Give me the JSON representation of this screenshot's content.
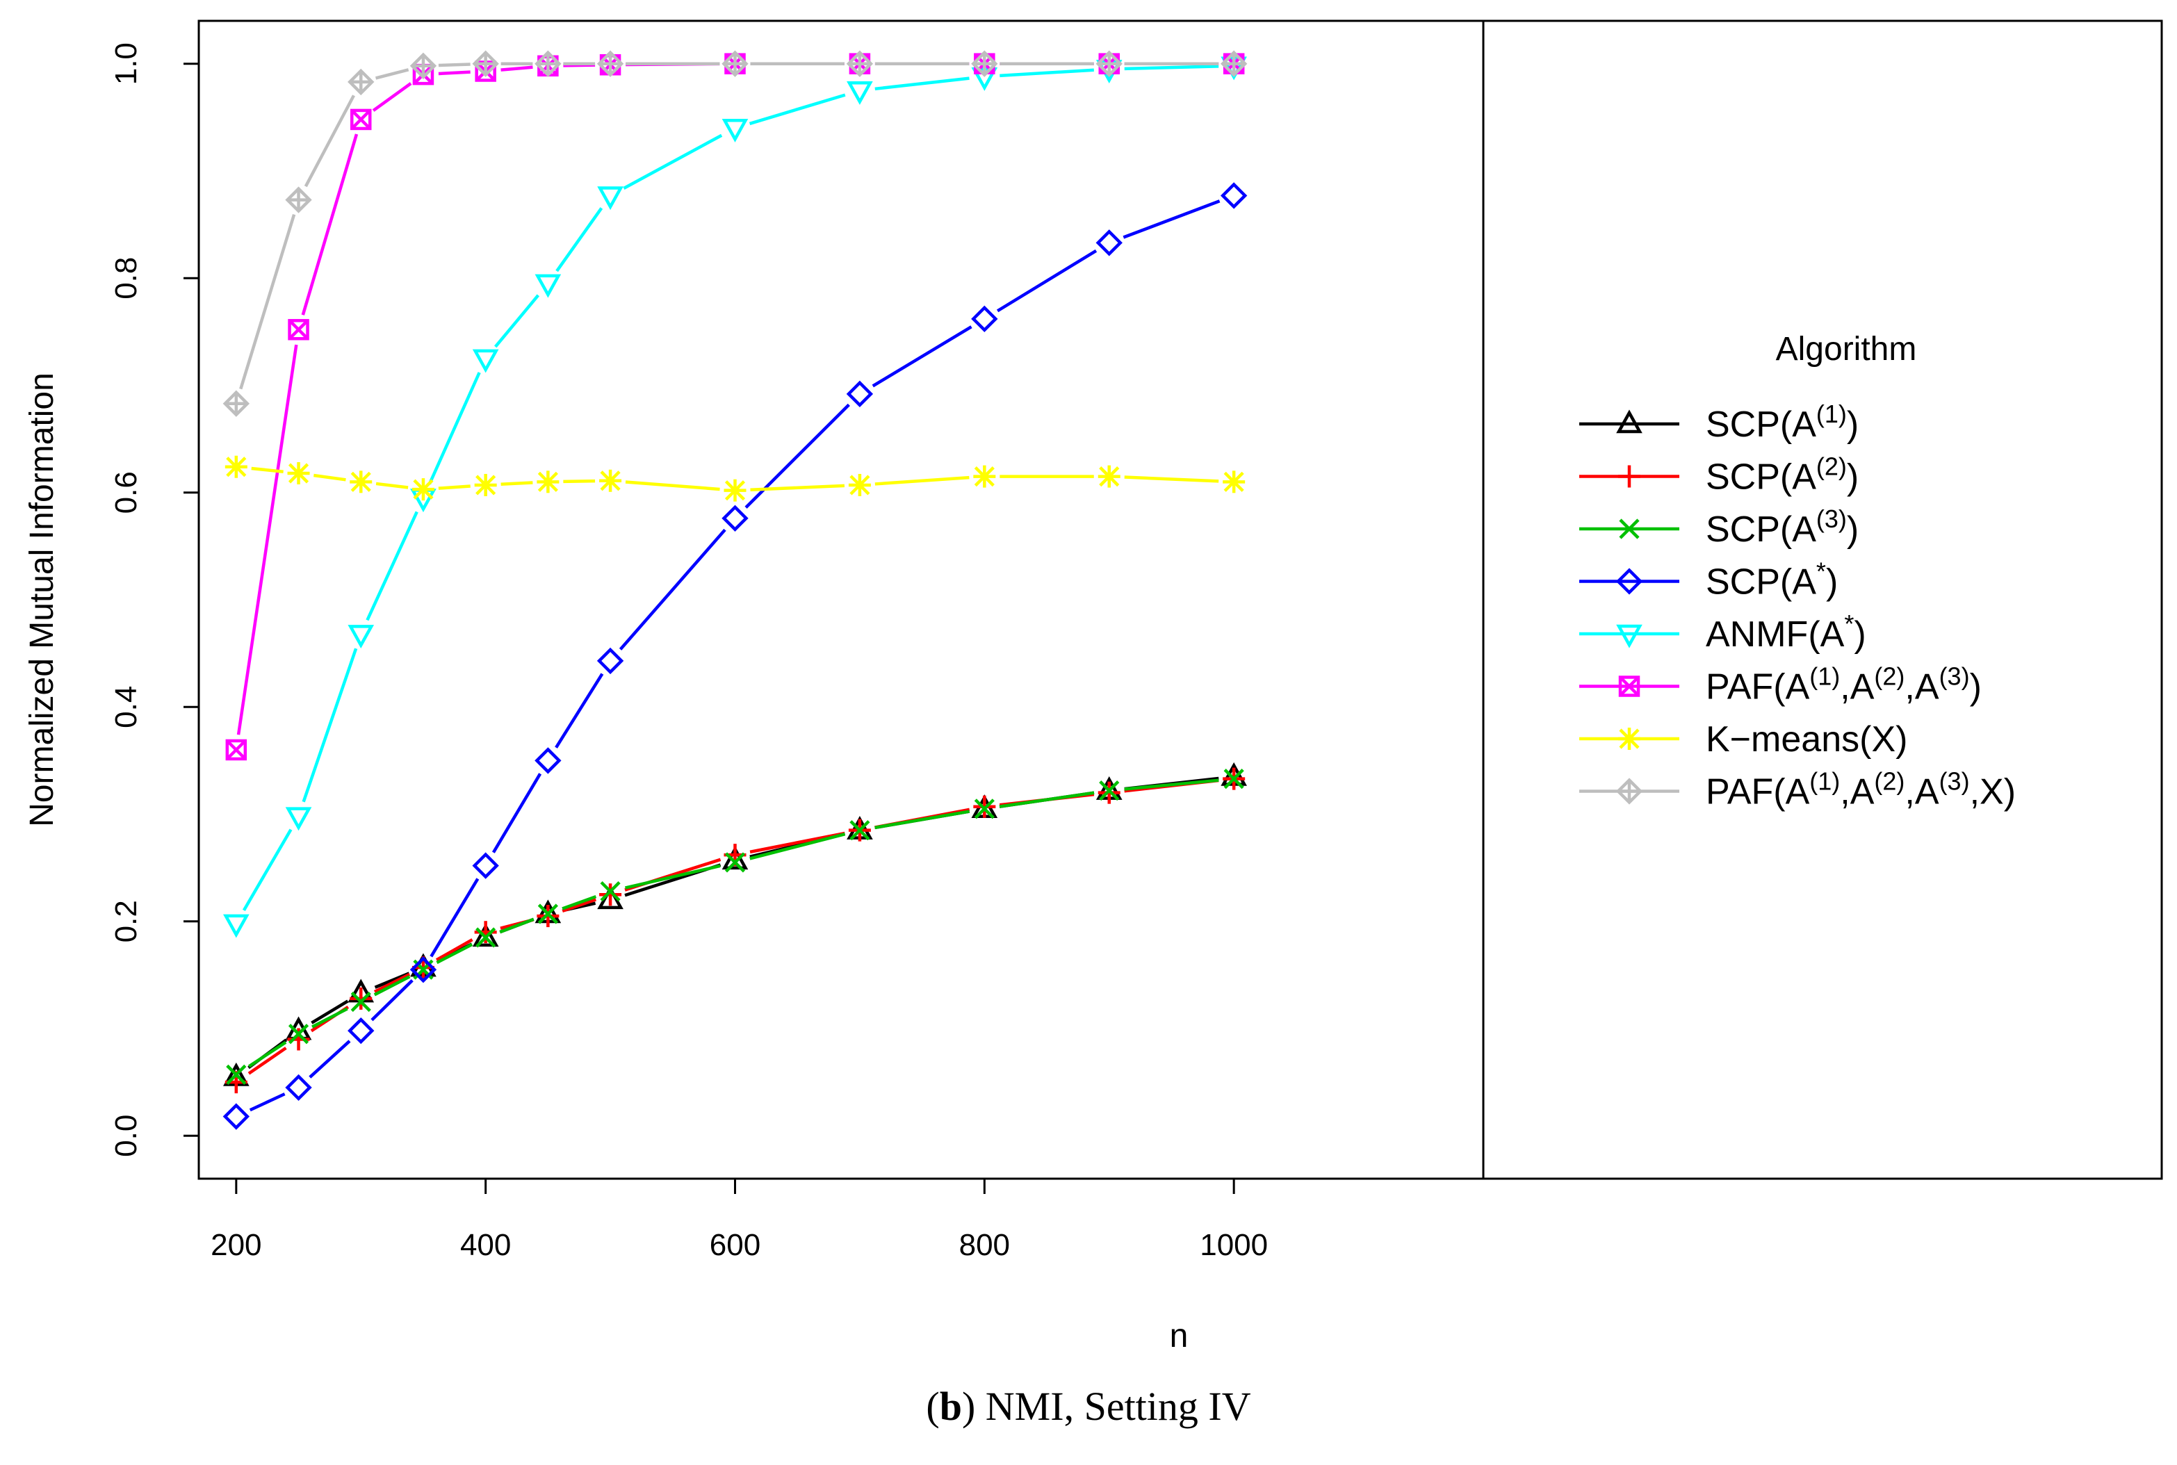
{
  "chart_data": {
    "type": "line",
    "title": "",
    "xlabel": "n",
    "ylabel": "Normalized Mutual Information",
    "xlim": [
      170,
      1200
    ],
    "ylim": [
      -0.04,
      1.04
    ],
    "xticks": [
      200,
      400,
      600,
      800,
      1000
    ],
    "xtick_labels": [
      "200",
      "400",
      "600",
      "800",
      "1000"
    ],
    "yticks": [
      0.0,
      0.2,
      0.4,
      0.6,
      0.8,
      1.0
    ],
    "ytick_labels": [
      "0.0",
      "0.2",
      "0.4",
      "0.6",
      "0.8",
      "1.0"
    ],
    "grid": false,
    "x": [
      200,
      250,
      300,
      350,
      400,
      450,
      500,
      600,
      700,
      800,
      900,
      1000
    ],
    "series": [
      {
        "name": "SCP(A(1))",
        "legend_base": "SCP(A",
        "legend_sup": [
          "(1)"
        ],
        "legend_tail": ")",
        "color": "#000000",
        "marker": "triangle-up",
        "values": [
          0.055,
          0.098,
          0.133,
          0.157,
          0.185,
          0.207,
          0.22,
          0.257,
          0.285,
          0.305,
          0.322,
          0.335
        ]
      },
      {
        "name": "SCP(A(2))",
        "legend_base": "SCP(A",
        "legend_sup": [
          "(2)"
        ],
        "legend_tail": ")",
        "color": "#ff0000",
        "marker": "plus",
        "values": [
          0.05,
          0.09,
          0.128,
          0.157,
          0.19,
          0.205,
          0.225,
          0.262,
          0.285,
          0.307,
          0.32,
          0.333
        ]
      },
      {
        "name": "SCP(A(3))",
        "legend_base": "SCP(A",
        "legend_sup": [
          "(3)"
        ],
        "legend_tail": ")",
        "color": "#00c000",
        "marker": "cross",
        "values": [
          0.057,
          0.095,
          0.125,
          0.155,
          0.185,
          0.207,
          0.228,
          0.255,
          0.285,
          0.305,
          0.322,
          0.333
        ]
      },
      {
        "name": "SCP(A*)",
        "legend_base": "SCP(A",
        "legend_sup": [
          "*"
        ],
        "legend_tail": ")",
        "color": "#0000ff",
        "marker": "diamond",
        "values": [
          0.018,
          0.045,
          0.098,
          0.155,
          0.252,
          0.35,
          0.443,
          0.576,
          0.692,
          0.762,
          0.833,
          0.877
        ]
      },
      {
        "name": "ANMF(A*)",
        "legend_base": "ANMF(A",
        "legend_sup": [
          "*"
        ],
        "legend_tail": ")",
        "color": "#00ffff",
        "marker": "triangle-down",
        "values": [
          0.198,
          0.298,
          0.468,
          0.595,
          0.725,
          0.795,
          0.877,
          0.94,
          0.975,
          0.988,
          0.995,
          0.998
        ]
      },
      {
        "name": "PAF(A(1),A(2),A(3))",
        "legend_base": "PAF(A",
        "legend_sup": [
          "(1)",
          "(2)",
          "(3)"
        ],
        "legend_tail": ")",
        "color": "#ff00ff",
        "marker": "square-x",
        "values": [
          0.36,
          0.752,
          0.948,
          0.99,
          0.993,
          0.998,
          0.999,
          1.0,
          1.0,
          1.0,
          1.0,
          1.0
        ]
      },
      {
        "name": "K-means(X)",
        "legend_base": "K−means(X)",
        "legend_sup": [],
        "legend_tail": "",
        "color": "#ffff00",
        "marker": "asterisk",
        "values": [
          0.624,
          0.618,
          0.61,
          0.603,
          0.607,
          0.61,
          0.611,
          0.602,
          0.607,
          0.615,
          0.615,
          0.61
        ]
      },
      {
        "name": "PAF(A(1),A(2),A(3),X)",
        "legend_base": "PAF(A",
        "legend_sup": [
          "(1)",
          "(2)",
          "(3)"
        ],
        "legend_tail": ",X)",
        "color": "#bebebe",
        "marker": "diamond-plus",
        "values": [
          0.683,
          0.873,
          0.983,
          0.998,
          1.0,
          1.0,
          1.0,
          1.0,
          1.0,
          1.0,
          1.0,
          1.0
        ]
      }
    ],
    "legend_title": "Algorithm",
    "legend_position": "right"
  },
  "caption": {
    "label": "b",
    "text": "NMI, Setting IV"
  }
}
